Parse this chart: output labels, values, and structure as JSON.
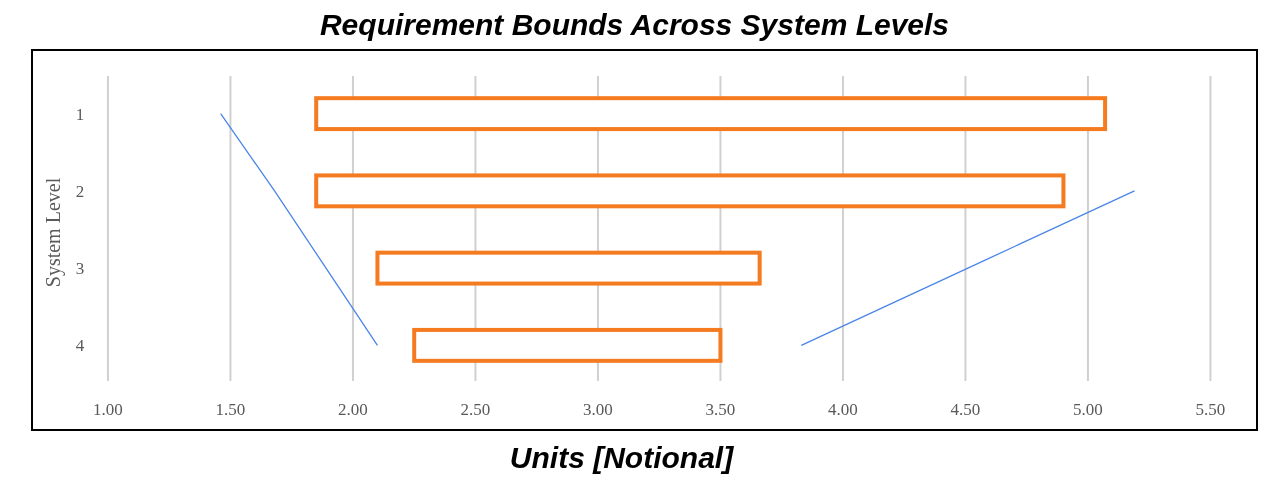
{
  "chart_data": {
    "type": "bar",
    "orientation": "horizontal",
    "title": "Requirement Bounds Across System Levels",
    "xlabel": "Units [Notional]",
    "ylabel": "System Level",
    "categories": [
      "1",
      "2",
      "3",
      "4"
    ],
    "series": [
      {
        "color": "#f47b20",
        "base": [
          1.85,
          1.85,
          2.1,
          2.25
        ],
        "values": [
          3.22,
          3.05,
          1.56,
          1.25
        ]
      },
      {
        "type": "line",
        "color": "#4a86e8",
        "values": [
          1.46,
          1.68,
          1.89,
          2.1
        ]
      },
      {
        "type": "line",
        "color": "#4a86e8",
        "values": [
          null,
          5.19,
          4.51,
          3.83
        ]
      }
    ],
    "xlim": [
      0.69,
      5.69
    ],
    "xticks": [
      {
        "value": 1,
        "label": "1.00"
      },
      {
        "value": 1.5,
        "label": "1.50"
      },
      {
        "value": 2,
        "label": "2.00"
      },
      {
        "value": 2.5,
        "label": "2.50"
      },
      {
        "value": 3,
        "label": "3.00"
      },
      {
        "value": 3.5,
        "label": "3.50"
      },
      {
        "value": 4,
        "label": "4.00"
      },
      {
        "value": 4.5,
        "label": "4.50"
      },
      {
        "value": 5,
        "label": "5.00"
      },
      {
        "value": 5.5,
        "label": "5.50"
      }
    ],
    "grid": "x",
    "line_style": "solid"
  }
}
